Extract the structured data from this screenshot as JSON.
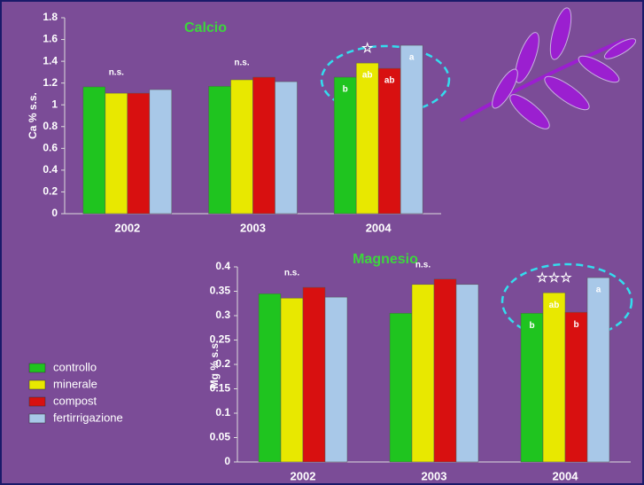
{
  "chart_data": [
    {
      "type": "bar",
      "title": "Calcio",
      "y_label": "Ca % s.s.",
      "categories": [
        "2002",
        "2003",
        "2004"
      ],
      "ylim": [
        0,
        1.8
      ],
      "yticks": [
        0,
        0.2,
        0.4,
        0.6,
        0.8,
        1,
        1.2,
        1.4,
        1.6,
        1.8
      ],
      "group_notes": [
        "n.s.",
        "n.s.",
        "☆"
      ],
      "series": [
        {
          "color": "#1fc41f",
          "values": [
            1.165,
            1.17,
            1.254
          ],
          "letters": [
            null,
            null,
            "b"
          ]
        },
        {
          "color": "#e8e800",
          "values": [
            1.107,
            1.23,
            1.384
          ],
          "letters": [
            null,
            null,
            "ab"
          ]
        },
        {
          "color": "#d81010",
          "values": [
            1.107,
            1.254,
            1.335
          ],
          "letters": [
            null,
            null,
            "ab"
          ]
        },
        {
          "color": "#a8c8e8",
          "values": [
            1.14,
            1.213,
            1.547
          ],
          "letters": [
            null,
            null,
            "a"
          ]
        }
      ]
    },
    {
      "type": "bar",
      "title": "Magnesio",
      "y_label": "Mg % s.s.",
      "categories": [
        "2002",
        "2003",
        "2004"
      ],
      "ylim": [
        0,
        0.4
      ],
      "yticks": [
        0,
        0.05,
        0.1,
        0.15,
        0.2,
        0.25,
        0.3,
        0.35,
        0.4
      ],
      "group_notes": [
        "n.s.",
        "n.s.",
        "☆☆☆"
      ],
      "series": [
        {
          "name": "controllo",
          "color": "#1fc41f",
          "values": [
            0.345,
            0.305,
            0.305
          ],
          "letters": [
            null,
            null,
            "b"
          ]
        },
        {
          "name": "minerale",
          "color": "#e8e800",
          "values": [
            0.336,
            0.364,
            0.347
          ],
          "letters": [
            null,
            null,
            "ab"
          ]
        },
        {
          "name": "compost",
          "color": "#d81010",
          "values": [
            0.358,
            0.375,
            0.307
          ],
          "letters": [
            null,
            null,
            "b"
          ]
        },
        {
          "name": "fertirrigazione",
          "color": "#a8c8e8",
          "values": [
            0.338,
            0.364,
            0.378
          ],
          "letters": [
            null,
            null,
            "a"
          ]
        }
      ]
    }
  ]
}
